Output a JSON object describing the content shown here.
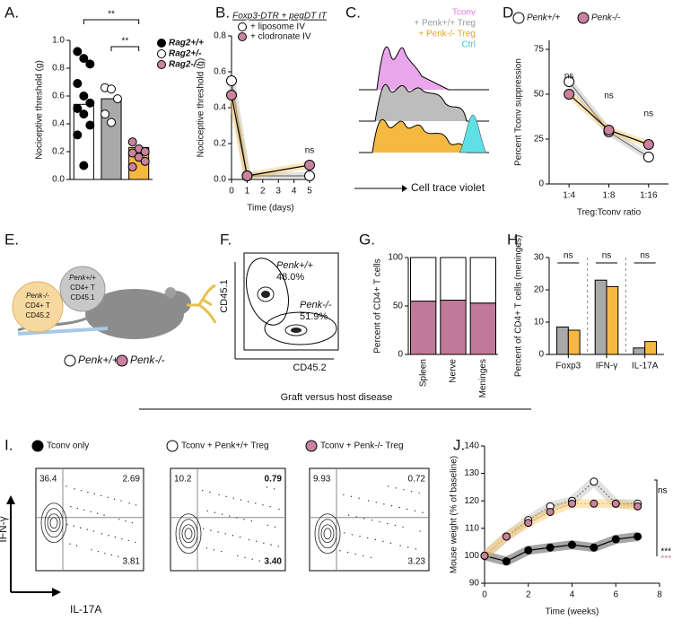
{
  "chart_data": [
    {
      "type": "bar",
      "panel": "A.",
      "y_label": "Nociceptive threshold (g)",
      "categories": [
        null,
        null,
        null
      ],
      "values": [
        0.54,
        0.58,
        0.23
      ],
      "bar_colors": [
        "#ffffff",
        "#a9a9a9",
        "#f5b942"
      ],
      "points": [
        [
          0.92,
          0.87,
          0.83,
          0.69,
          0.6,
          0.55,
          0.51,
          0.47,
          0.39,
          0.32,
          0.1
        ],
        [
          0.66,
          0.65,
          0.58,
          0.47,
          0.41
        ],
        [
          0.27,
          0.22,
          0.2,
          0.19,
          0.16,
          0.13,
          0.09
        ]
      ],
      "point_colors": [
        "#000000",
        "#ffffff",
        "#c9829f"
      ],
      "legend": [
        "Rag2+/+",
        "Rag2+/-",
        "Rag2-/-"
      ],
      "annotations": [
        "**",
        "**"
      ],
      "ylim": [
        0,
        1
      ],
      "yticks": [
        {
          "value": 0,
          "label": "0.0"
        },
        0.2,
        0.4,
        0.6,
        0.8,
        {
          "value": 1,
          "label": "1.0"
        }
      ]
    },
    {
      "type": "line",
      "panel": "B.",
      "title": "Foxp3-DTR + pegDT IT",
      "y_label": "Nociceptive threshold (g)",
      "x_label": "Time (days)",
      "x": [
        0,
        1,
        5
      ],
      "series": [
        {
          "name": "+ liposome IV",
          "color": "#ffffff",
          "band": "#a9a9a9",
          "values": [
            0.55,
            0.02,
            0.02
          ]
        },
        {
          "name": "+ clodronate IV",
          "color": "#c9829f",
          "band": "#f5b942",
          "values": [
            0.47,
            0.02,
            0.08
          ]
        }
      ],
      "annotations": [
        "ns"
      ],
      "xlim": [
        0,
        5
      ],
      "xticks": [
        0,
        1,
        2,
        3,
        4,
        5
      ],
      "ylim": [
        0,
        0.8
      ],
      "yticks": [
        {
          "value": 0,
          "label": "0.0"
        },
        0.2,
        0.4,
        0.6,
        0.8
      ]
    },
    {
      "type": "line",
      "panel": "D.",
      "y_label": "Percent Tconv suppression",
      "x_label": "Treg:Tconv ratio",
      "categories": [
        "1:4",
        "1:8",
        "1:16"
      ],
      "series": [
        {
          "name": "Penk+/+",
          "color": "#ffffff",
          "band": "#a9a9a9",
          "values": [
            57,
            29,
            15
          ]
        },
        {
          "name": "Penk-/-",
          "color": "#c9829f",
          "band": "#f5b942",
          "values": [
            50,
            30,
            22
          ]
        }
      ],
      "annotations": [
        "ns",
        "ns",
        "ns"
      ],
      "ylim": [
        0,
        80
      ],
      "yticks": [
        0,
        25,
        50,
        75
      ]
    },
    {
      "type": "stacked-bar",
      "panel": "G.",
      "y_label": "Percent of CD4+ T cells",
      "categories": [
        "Spleen",
        "Nerve",
        "Meninges"
      ],
      "series": [
        {
          "color": "#c07a98",
          "values": [
            55,
            56,
            53
          ]
        },
        {
          "color": "#ffffff",
          "values": [
            45,
            44,
            47
          ]
        }
      ],
      "ylim": [
        0,
        100
      ],
      "yticks": [
        0,
        50,
        100
      ]
    },
    {
      "type": "grouped-bar",
      "panel": "H.",
      "y_label": "Percent of CD4+ T cells (meninges)",
      "categories": [
        "Foxp3",
        "IFN-γ",
        "IL-17A"
      ],
      "series": [
        {
          "color": "#a9a9a9",
          "values": [
            8.5,
            23,
            2
          ]
        },
        {
          "color": "#f5b942",
          "values": [
            7.5,
            21,
            4
          ]
        }
      ],
      "annotations": [
        "ns",
        "ns",
        "ns"
      ],
      "ylim": [
        0,
        30
      ],
      "yticks": [
        0,
        10,
        20,
        30
      ]
    },
    {
      "type": "line",
      "panel": "J.",
      "y_label": "Mouse weight (% of baseline)",
      "x_label": "Time (weeks)",
      "x": [
        0,
        1,
        2,
        3,
        4,
        5,
        6,
        7
      ],
      "series": [
        {
          "color": "#000000",
          "band": "#000000",
          "values": [
            100,
            98,
            102,
            103,
            104,
            103,
            106,
            107
          ]
        },
        {
          "color": "#ffffff",
          "band": "#a9a9a9",
          "values": [
            100,
            107,
            113,
            118,
            120,
            127,
            119,
            119
          ]
        },
        {
          "color": "#c9829f",
          "band": "#f5b942",
          "values": [
            100,
            107,
            112,
            116,
            119,
            119,
            119,
            118
          ]
        }
      ],
      "annotations": [
        "ns",
        "***",
        "***"
      ],
      "annotation_colors": [
        "#000000",
        "#000000",
        "#c9829f"
      ],
      "xlim": [
        0,
        8
      ],
      "xticks": [
        0,
        2,
        4,
        6,
        8
      ],
      "ylim": [
        90,
        140
      ],
      "yticks": [
        90,
        100,
        110,
        120,
        130,
        140
      ]
    }
  ],
  "panel_c": {
    "panel": "C.",
    "labels": [
      "Tconv",
      "+ Penk+/+ Treg",
      "+ Penk-/- Treg",
      "Ctrl"
    ],
    "axis": "Cell trace violet"
  },
  "panel_e": {
    "panel": "E.",
    "donor_ko": [
      "Penk-/-",
      "CD4+ T",
      "CD45.2"
    ],
    "donor_wt": [
      "Penk+/+",
      "CD4+ T",
      "CD45.1"
    ],
    "legend": [
      "Penk+/+",
      "Penk-/-"
    ]
  },
  "panel_f": {
    "panel": "F.",
    "y_label": "CD45.1",
    "x_label": "CD45.2",
    "gates": [
      {
        "name": "Penk+/+",
        "pct": "48.0%"
      },
      {
        "name": "Penk-/-",
        "pct": "51.9%"
      }
    ]
  },
  "section_title": "Graft versus host disease",
  "panel_i": {
    "panel": "I.",
    "y_label": "IFN-γ",
    "x_label": "IL-17A",
    "plots": [
      {
        "title": "Tconv only",
        "quadrants": [
          "36.4",
          "2.69",
          "3.81"
        ]
      },
      {
        "title": "Tconv + Penk+/+ Treg",
        "quadrants": [
          "10.2",
          "0.79",
          "3.40"
        ]
      },
      {
        "title": "Tconv + Penk-/- Treg",
        "quadrants": [
          "9.93",
          "0.72",
          "3.23"
        ]
      }
    ]
  }
}
